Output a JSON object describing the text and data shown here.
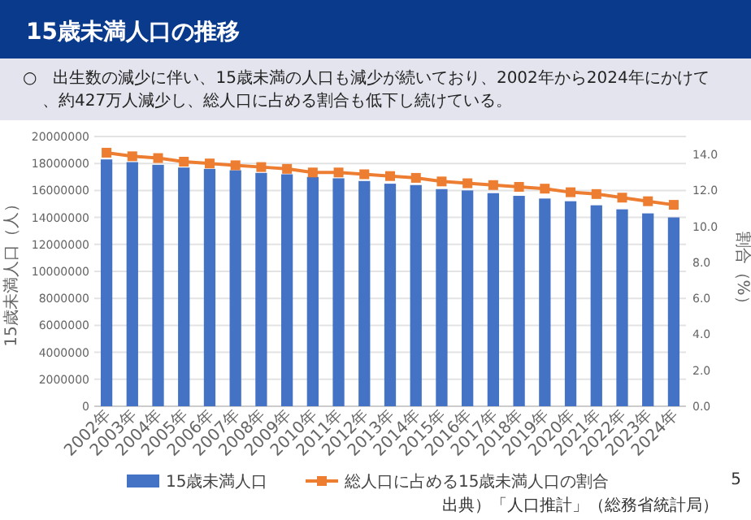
{
  "chart_data": {
    "type": "bar",
    "title": "15歳未満人口の推移",
    "subtitle": "○　出生数の減少に伴い、15歳未満の人口も減少が続いており、2002年から2024年にかけて、約427万人減少し、総人口に占める割合も低下し続けている。",
    "categories": [
      "2002年",
      "2003年",
      "2004年",
      "2005年",
      "2006年",
      "2007年",
      "2008年",
      "2009年",
      "2010年",
      "2011年",
      "2012年",
      "2013年",
      "2014年",
      "2015年",
      "2016年",
      "2017年",
      "2018年",
      "2019年",
      "2020年",
      "2021年",
      "2022年",
      "2023年",
      "2024年"
    ],
    "series": [
      {
        "name": "15歳未満人口",
        "color": "#4472c4",
        "values": [
          18300000,
          18100000,
          17900000,
          17700000,
          17600000,
          17500000,
          17300000,
          17200000,
          17000000,
          16900000,
          16700000,
          16500000,
          16400000,
          16100000,
          16000000,
          15800000,
          15600000,
          15400000,
          15200000,
          14900000,
          14600000,
          14300000,
          14000000
        ]
      },
      {
        "name": "総人口に占める15歳未満人口の割合",
        "type": "line",
        "axis": "y2",
        "color": "#ed7d31",
        "marker": "square",
        "values": [
          14.1,
          13.9,
          13.8,
          13.6,
          13.5,
          13.4,
          13.3,
          13.2,
          13.0,
          13.0,
          12.9,
          12.8,
          12.7,
          12.5,
          12.4,
          12.3,
          12.2,
          12.1,
          11.9,
          11.8,
          11.6,
          11.4,
          11.2
        ]
      }
    ],
    "ylabel": "15歳未満人口（人）",
    "y2label": "割合（%）",
    "ylim": [
      0,
      20000000
    ],
    "yticks": [
      0,
      2000000,
      4000000,
      6000000,
      8000000,
      10000000,
      12000000,
      14000000,
      16000000,
      18000000,
      20000000
    ],
    "y2lim": [
      0,
      15
    ],
    "y2ticks": [
      {
        "value": 0,
        "label": "0.0"
      },
      {
        "value": 2,
        "label": "2.0"
      },
      {
        "value": 4,
        "label": "4.0"
      },
      {
        "value": 6,
        "label": "6.0"
      },
      {
        "value": 8,
        "label": "8.0"
      },
      {
        "value": 10,
        "label": "10.0"
      },
      {
        "value": 12,
        "label": "12.0"
      },
      {
        "value": 14,
        "label": "14.0"
      }
    ],
    "grid": "y",
    "legend": "bottom",
    "annotations": [
      "出典）「人口推計」（総務省統計局）",
      "5"
    ]
  }
}
